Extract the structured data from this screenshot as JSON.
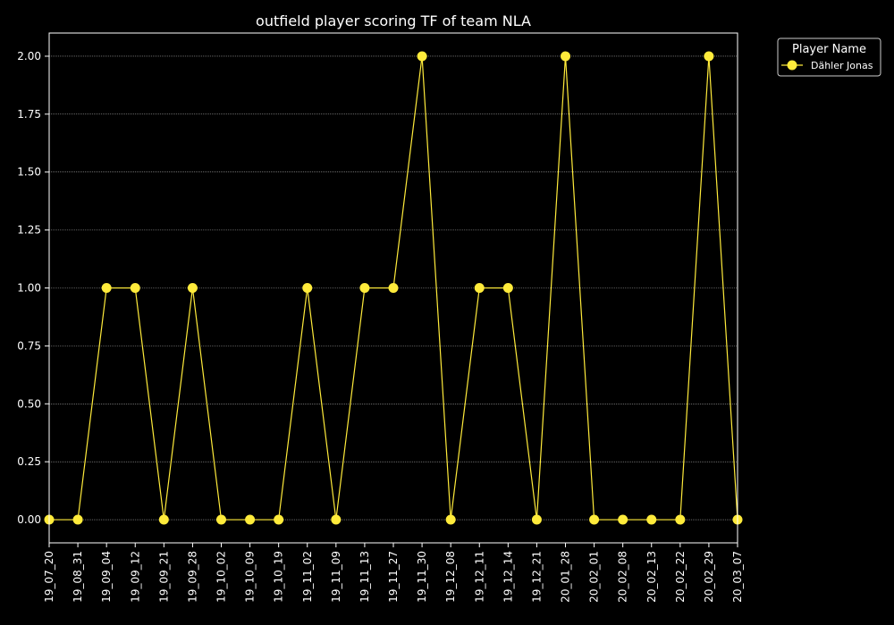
{
  "chart_data": {
    "type": "line",
    "title": "outfield player scoring TF of team NLA",
    "xlabel": "",
    "ylabel": "",
    "categories": [
      "19_07_20",
      "19_08_31",
      "19_09_04",
      "19_09_12",
      "19_09_21",
      "19_09_28",
      "19_10_02",
      "19_10_09",
      "19_10_19",
      "19_11_02",
      "19_11_09",
      "19_11_13",
      "19_11_27",
      "19_11_30",
      "19_12_08",
      "19_12_11",
      "19_12_14",
      "19_12_21",
      "20_01_28",
      "20_02_01",
      "20_02_08",
      "20_02_13",
      "20_02_22",
      "20_02_29",
      "20_03_07"
    ],
    "series": [
      {
        "name": "Dähler Jonas",
        "color": "#ffeb3b",
        "values": [
          0,
          0,
          1,
          1,
          0,
          1,
          0,
          0,
          0,
          1,
          0,
          1,
          1,
          2,
          0,
          1,
          1,
          0,
          2,
          0,
          0,
          0,
          0,
          2,
          0
        ]
      }
    ],
    "ylim": [
      -0.1,
      2.1
    ],
    "yticks": [
      "0.00",
      "0.25",
      "0.50",
      "0.75",
      "1.00",
      "1.25",
      "1.50",
      "1.75",
      "2.00"
    ],
    "grid": true,
    "legend": {
      "title": "Player Name",
      "placement": "outside-top-right"
    },
    "colors": {
      "background": "#000000",
      "axes": "#ffffff",
      "grid": "#aaaaaa"
    }
  }
}
